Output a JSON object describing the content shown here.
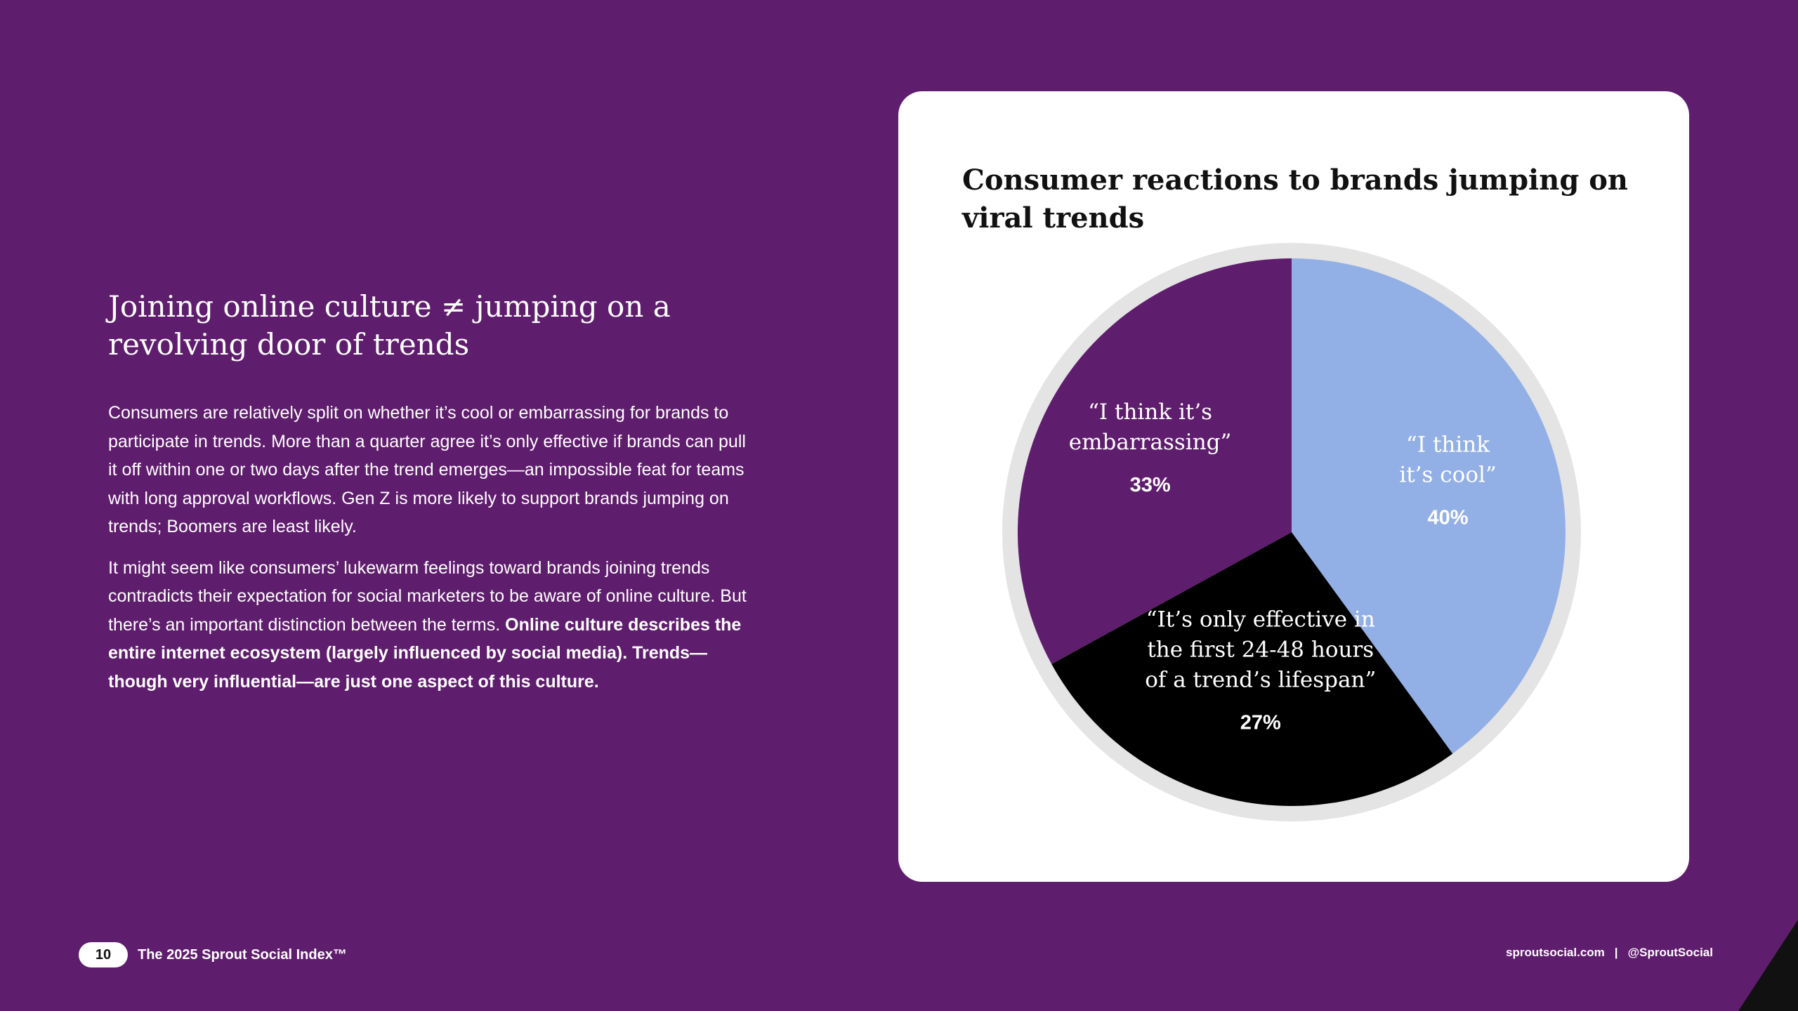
{
  "page": {
    "heading": "Joining online culture ≠ jumping on a revolving door of trends",
    "paragraph1": "Consumers are relatively split on whether it’s cool or embarrassing for brands to participate in trends. More than a quarter agree it’s only effective if brands can pull it off within one or two days after the trend emerges—an impossible feat for teams with long approval workflows. Gen Z is more likely to support brands jumping on trends; Boomers are least likely.",
    "paragraph2_regular": "It might seem like consumers’ lukewarm feelings toward brands joining trends contradicts their expectation for social marketers to be aware of online culture. But there’s an important distinction between the terms.",
    "paragraph2_bold": "Online culture describes the entire internet ecosystem (largely influenced by social media). Trends—though very influential—are just one aspect of this culture."
  },
  "footer": {
    "page_number": "10",
    "report_name": "The 2025 Sprout Social Index™",
    "website": "sproutsocial.com",
    "separator": "|",
    "handle": "@SproutSocial"
  },
  "colors": {
    "background": "#5f1d6d",
    "card": "#ffffff",
    "cool": "#93b0e6",
    "embarrassing": "#5f1d6d",
    "effective": "#000000"
  },
  "chart_data": {
    "type": "pie",
    "title": "Consumer reactions to brands jumping on viral trends",
    "slices": [
      {
        "label_lines": [
          "“I think",
          "it’s cool”"
        ],
        "value": 40,
        "display": "40%",
        "color": "#93b0e6"
      },
      {
        "label_lines": [
          "“It’s only effective in",
          "the first 24-48 hours",
          "of a trend’s lifespan”"
        ],
        "value": 27,
        "display": "27%",
        "color": "#000000"
      },
      {
        "label_lines": [
          "“I think it’s",
          "embarrassing”"
        ],
        "value": 33,
        "display": "33%",
        "color": "#5f1d6d"
      }
    ]
  }
}
